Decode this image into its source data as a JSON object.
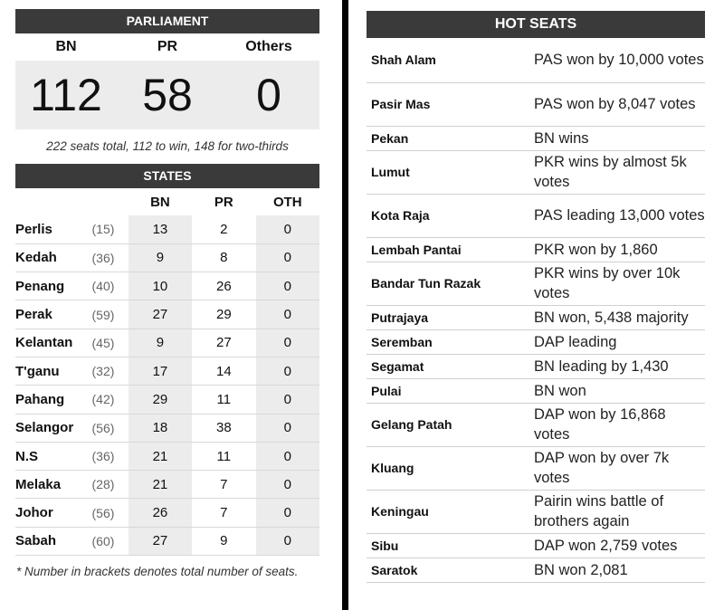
{
  "parliament": {
    "title": "PARLIAMENT",
    "parties": [
      "BN",
      "PR",
      "Others"
    ],
    "seats": [
      "112",
      "58",
      "0"
    ],
    "note": "222 seats total, 112 to win, 148 for two-thirds"
  },
  "states": {
    "title": "STATES",
    "columns": [
      "BN",
      "PR",
      "OTH"
    ],
    "rows": [
      {
        "name": "Perlis",
        "total": "(15)",
        "bn": "13",
        "pr": "2",
        "oth": "0"
      },
      {
        "name": "Kedah",
        "total": "(36)",
        "bn": "9",
        "pr": "8",
        "oth": "0"
      },
      {
        "name": "Penang",
        "total": "(40)",
        "bn": "10",
        "pr": "26",
        "oth": "0"
      },
      {
        "name": "Perak",
        "total": "(59)",
        "bn": "27",
        "pr": "29",
        "oth": "0"
      },
      {
        "name": "Kelantan",
        "total": "(45)",
        "bn": "9",
        "pr": "27",
        "oth": "0"
      },
      {
        "name": "T'ganu",
        "total": "(32)",
        "bn": "17",
        "pr": "14",
        "oth": "0"
      },
      {
        "name": "Pahang",
        "total": "(42)",
        "bn": "29",
        "pr": "11",
        "oth": "0"
      },
      {
        "name": "Selangor",
        "total": "(56)",
        "bn": "18",
        "pr": "38",
        "oth": "0"
      },
      {
        "name": "N.S",
        "total": "(36)",
        "bn": "21",
        "pr": "11",
        "oth": "0"
      },
      {
        "name": "Melaka",
        "total": "(28)",
        "bn": "21",
        "pr": "7",
        "oth": "0"
      },
      {
        "name": "Johor",
        "total": "(56)",
        "bn": "26",
        "pr": "7",
        "oth": "0"
      },
      {
        "name": "Sabah",
        "total": "(60)",
        "bn": "27",
        "pr": "9",
        "oth": "0"
      }
    ],
    "footnote": "* Number in brackets denotes total number of seats."
  },
  "hot_seats": {
    "title": "HOT SEATS",
    "rows": [
      {
        "seat": "Shah Alam",
        "result": "PAS won by 10,000 votes"
      },
      {
        "seat": "Pasir Mas",
        "result": "PAS won by 8,047 votes"
      },
      {
        "seat": "Pekan",
        "result": "BN wins"
      },
      {
        "seat": "Lumut",
        "result": "PKR wins by almost 5k votes"
      },
      {
        "seat": "Kota Raja",
        "result": "PAS leading 13,000 votes"
      },
      {
        "seat": "Lembah Pantai",
        "result": "PKR won by 1,860"
      },
      {
        "seat": "Bandar Tun Razak",
        "result": "PKR wins by over 10k votes"
      },
      {
        "seat": "Putrajaya",
        "result": "BN won, 5,438 majority"
      },
      {
        "seat": "Seremban",
        "result": "DAP leading"
      },
      {
        "seat": "Segamat",
        "result": "BN leading by 1,430"
      },
      {
        "seat": "Pulai",
        "result": "BN won"
      },
      {
        "seat": "Gelang Patah",
        "result": "DAP won by 16,868 votes"
      },
      {
        "seat": "Kluang",
        "result": "DAP won by over 7k votes"
      },
      {
        "seat": "Keningau",
        "result": "Pairin wins battle of brothers again"
      },
      {
        "seat": "Sibu",
        "result": "DAP won 2,759 votes"
      },
      {
        "seat": "Saratok",
        "result": "BN won 2,081"
      }
    ]
  }
}
